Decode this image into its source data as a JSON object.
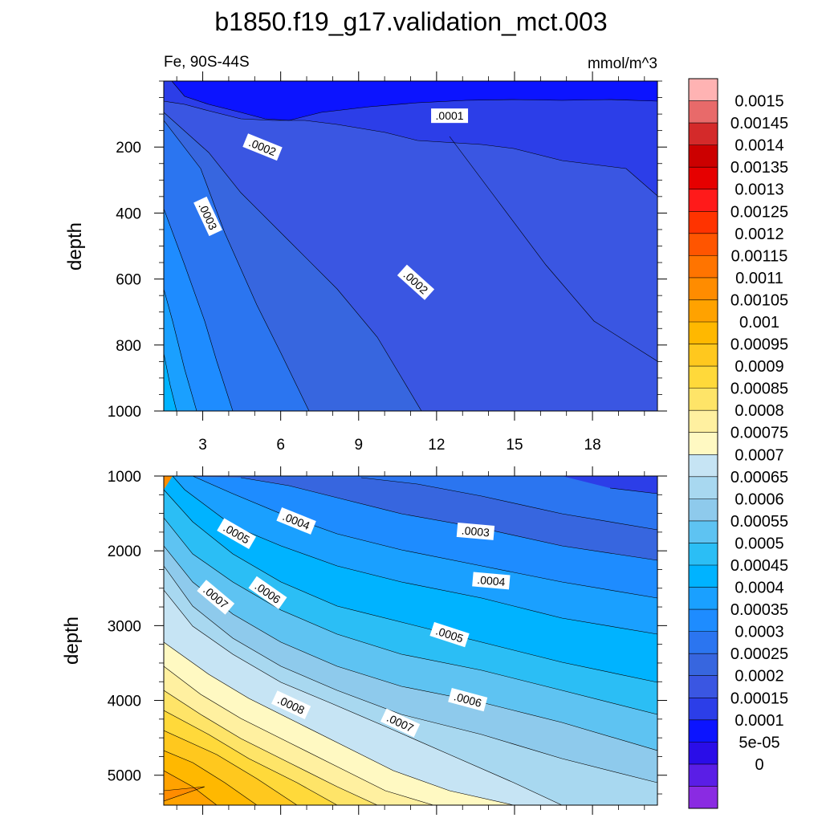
{
  "chart_data": {
    "type": "contour",
    "title": "b1850.f19_g17.validation_mct.003",
    "left_label": "Fe, 90S-44S",
    "units": "mmol/m^3",
    "panels": [
      {
        "ylabel": "depth",
        "ylim": [
          1000,
          0
        ],
        "y_ticks": [
          200,
          400,
          600,
          800,
          1000
        ],
        "y_tick_labels": [
          "200",
          "400",
          "600",
          "800",
          "1000"
        ],
        "xlim": [
          1.5,
          20.5
        ],
        "x_ticks": [
          3,
          6,
          9,
          12,
          15,
          18
        ],
        "x_tick_labels": [
          "3",
          "6",
          "9",
          "12",
          "15",
          "18"
        ],
        "contour_labels": [
          {
            "text": ".0001",
            "x": 12.5,
            "y": 105,
            "angle": 0
          },
          {
            "text": ".0002",
            "x": 5.3,
            "y": 200,
            "angle": 22
          },
          {
            "text": ".0003",
            "x": 3.2,
            "y": 410,
            "angle": 65
          },
          {
            "text": ".0002",
            "x": 11.2,
            "y": 610,
            "angle": 42
          }
        ]
      },
      {
        "ylabel": "depth",
        "ylim": [
          5400,
          1000
        ],
        "y_ticks": [
          1000,
          2000,
          3000,
          4000,
          5000
        ],
        "y_tick_labels": [
          "1000",
          "2000",
          "3000",
          "4000",
          "5000"
        ],
        "xlim": [
          1.5,
          20.5
        ],
        "x_ticks": [
          3,
          6,
          9,
          12,
          15,
          18
        ],
        "x_tick_labels": [],
        "contour_labels": [
          {
            "text": ".0004",
            "x": 6.6,
            "y": 1600,
            "angle": 22
          },
          {
            "text": ".0005",
            "x": 4.3,
            "y": 1770,
            "angle": 30
          },
          {
            "text": ".0003",
            "x": 13.5,
            "y": 1740,
            "angle": 5
          },
          {
            "text": ".0004",
            "x": 14.1,
            "y": 2400,
            "angle": 5
          },
          {
            "text": ".0006",
            "x": 5.5,
            "y": 2560,
            "angle": 35
          },
          {
            "text": ".0007",
            "x": 3.5,
            "y": 2620,
            "angle": 40
          },
          {
            "text": ".0005",
            "x": 12.5,
            "y": 3120,
            "angle": 18
          },
          {
            "text": ".0006",
            "x": 13.2,
            "y": 3990,
            "angle": 15
          },
          {
            "text": ".0008",
            "x": 6.4,
            "y": 4060,
            "angle": 25
          },
          {
            "text": ".0007",
            "x": 10.6,
            "y": 4300,
            "angle": 25
          }
        ]
      }
    ],
    "colorbar": {
      "levels": [
        "0.0015",
        "0.00145",
        "0.0014",
        "0.00135",
        "0.0013",
        "0.00125",
        "0.0012",
        "0.00115",
        "0.0011",
        "0.00105",
        "0.001",
        "0.00095",
        "0.0009",
        "0.00085",
        "0.0008",
        "0.00075",
        "0.0007",
        "0.00065",
        "0.0006",
        "0.00055",
        "0.0005",
        "0.00045",
        "0.0004",
        "0.00035",
        "0.0003",
        "0.00025",
        "0.0002",
        "0.00015",
        "0.0001",
        "5e-05",
        "0"
      ],
      "colors": [
        "#ffb3b3",
        "#e86a6a",
        "#d42a2a",
        "#cc0000",
        "#e60000",
        "#ff1a1a",
        "#ff3300",
        "#ff5500",
        "#ff7400",
        "#ff8c00",
        "#ffa200",
        "#ffb800",
        "#ffc81e",
        "#ffd93a",
        "#fee468",
        "#fff0a0",
        "#fff9c2",
        "#c6e4f4",
        "#a8d8f0",
        "#8ecaec",
        "#5ec3f2",
        "#2bbef5",
        "#00b3ff",
        "#1aa0ff",
        "#1e8cff",
        "#2b75f0",
        "#3766df",
        "#3a56e2",
        "#2c3ee8",
        "#0c14ff",
        "#2a0de8",
        "#5a1ee6",
        "#8a2be2"
      ]
    },
    "grid": false
  }
}
